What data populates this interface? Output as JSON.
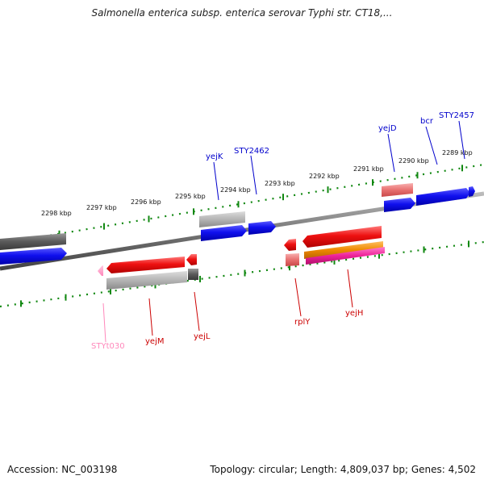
{
  "title": "Salmonella enterica subsp. enterica serovar Typhi str. CT18,...",
  "footer": {
    "accession": "Accession: NC_003198",
    "topology": "Topology: circular; Length: 4,809,037 bp; Genes: 4,502"
  },
  "scale_labels": [
    "2298 kbp",
    "2297 kbp",
    "2296 kbp",
    "2295 kbp",
    "2294 kbp",
    "2293 kbp",
    "2292 kbp",
    "2291 kbp",
    "2290 kbp",
    "2289 kbp"
  ],
  "gene_labels": {
    "upper": [
      {
        "id": "yejK",
        "text": "yejK",
        "color": "#0000cc"
      },
      {
        "id": "STY2462",
        "text": "STY2462",
        "color": "#0000cc"
      },
      {
        "id": "yejD",
        "text": "yejD",
        "color": "#0000cc"
      },
      {
        "id": "bcr",
        "text": "bcr",
        "color": "#0000cc"
      },
      {
        "id": "STY2457",
        "text": "STY2457",
        "color": "#0000cc"
      }
    ],
    "lower": [
      {
        "id": "STYt030",
        "text": "STYt030",
        "color": "#ff88bb"
      },
      {
        "id": "yejM",
        "text": "yejM",
        "color": "#cc0000"
      },
      {
        "id": "yejL",
        "text": "yejL",
        "color": "#cc0000"
      },
      {
        "id": "rplY",
        "text": "rplY",
        "color": "#cc0000"
      },
      {
        "id": "yejH",
        "text": "yejH",
        "color": "#cc0000"
      }
    ]
  },
  "colors": {
    "forward_gene": "#1111ee",
    "reverse_gene": "#ee1111",
    "grey_feature": "#aaaaaa",
    "dark_feature": "#555555",
    "pink_feature": "#e87070",
    "orange_feature": "#ee8800",
    "magenta_feature": "#ee2299",
    "trna": "#ff88bb",
    "ticks": "#118811",
    "backbone": "#777777"
  }
}
